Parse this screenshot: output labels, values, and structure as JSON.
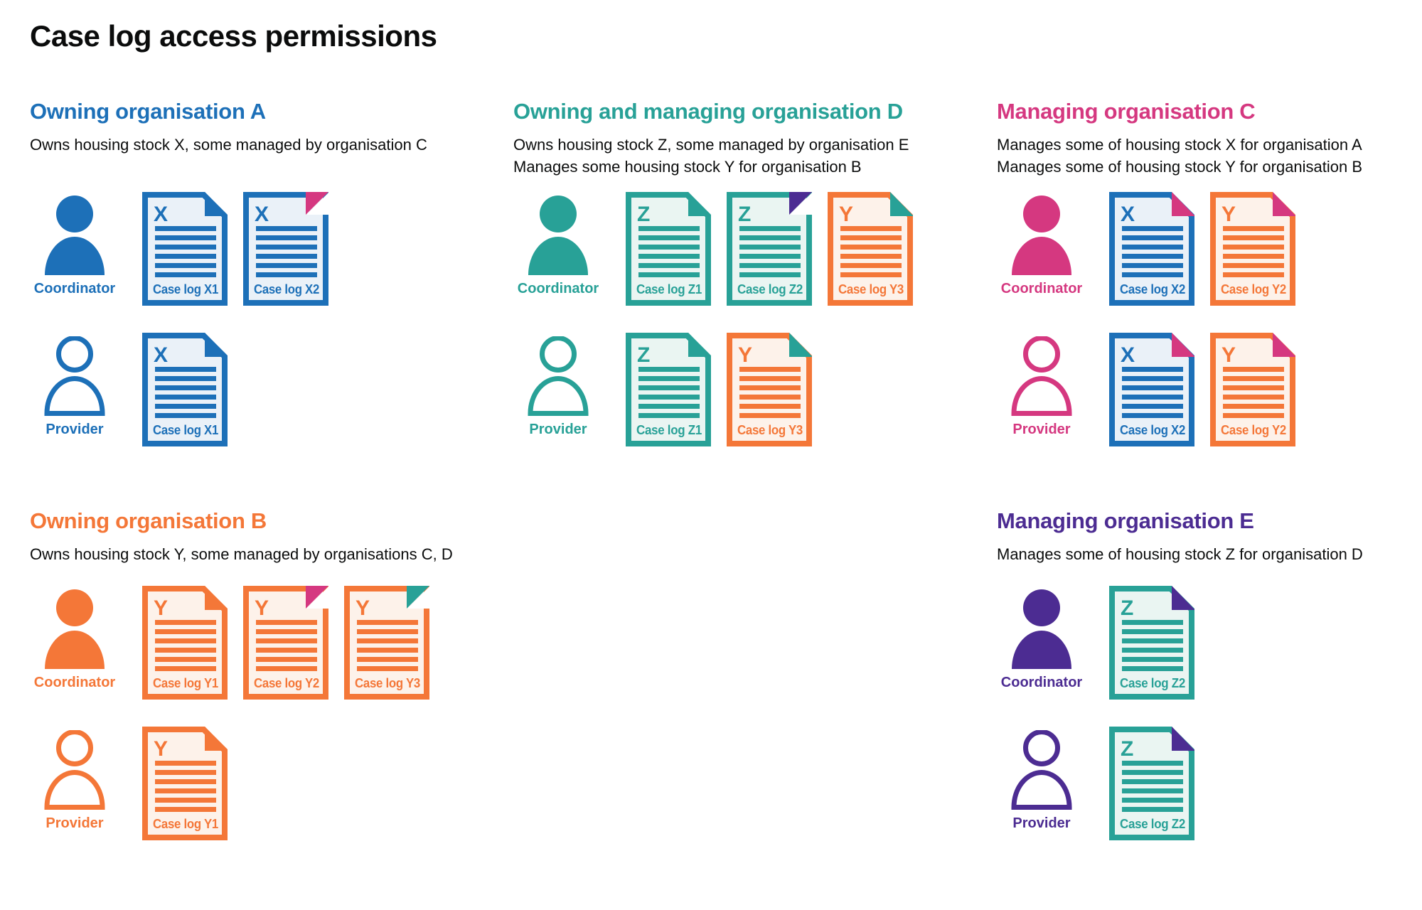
{
  "title": "Case log access permissions",
  "palette": {
    "blue": "#1d70b8",
    "teal": "#28a197",
    "orange": "#f47738",
    "pink": "#d53880",
    "purple": "#4c2c92",
    "text": "#0b0c0c",
    "doc_tint": {
      "blue": "#eaf1f8",
      "teal": "#eaf5f2",
      "orange": "#fdf2ea"
    }
  },
  "organisations": [
    {
      "id": "A",
      "heading": "Owning organisation A",
      "color": "blue",
      "subtitle_lines": [
        "Owns housing stock X, some managed by organisation C"
      ],
      "rows": [
        {
          "role": "Coordinator",
          "person_style": "filled",
          "docs": [
            {
              "label": "Case log X1",
              "letter": "X",
              "doc_color": "blue",
              "fold_color": "blue",
              "fold_style": "dogear"
            },
            {
              "label": "Case log X2",
              "letter": "X",
              "doc_color": "blue",
              "fold_color": "pink",
              "fold_style": "corner"
            }
          ]
        },
        {
          "role": "Provider",
          "person_style": "outline",
          "docs": [
            {
              "label": "Case log X1",
              "letter": "X",
              "doc_color": "blue",
              "fold_color": "blue",
              "fold_style": "dogear"
            }
          ]
        }
      ]
    },
    {
      "id": "D",
      "heading": "Owning and managing organisation D",
      "color": "teal",
      "subtitle_lines": [
        "Owns housing stock Z, some managed by organisation E",
        "Manages some housing stock Y for organisation B"
      ],
      "rows": [
        {
          "role": "Coordinator",
          "person_style": "filled",
          "docs": [
            {
              "label": "Case log Z1",
              "letter": "Z",
              "doc_color": "teal",
              "fold_color": "teal",
              "fold_style": "dogear"
            },
            {
              "label": "Case log Z2",
              "letter": "Z",
              "doc_color": "teal",
              "fold_color": "purple",
              "fold_style": "corner"
            },
            {
              "label": "Case log Y3",
              "letter": "Y",
              "doc_color": "orange",
              "fold_color": "teal",
              "fold_style": "dogear"
            }
          ]
        },
        {
          "role": "Provider",
          "person_style": "outline",
          "docs": [
            {
              "label": "Case log Z1",
              "letter": "Z",
              "doc_color": "teal",
              "fold_color": "teal",
              "fold_style": "dogear"
            },
            {
              "label": "Case log Y3",
              "letter": "Y",
              "doc_color": "orange",
              "fold_color": "teal",
              "fold_style": "dogear"
            }
          ]
        }
      ]
    },
    {
      "id": "C",
      "heading": "Managing organisation C",
      "color": "pink",
      "subtitle_lines": [
        "Manages some of housing stock X for organisation A",
        "Manages some of housing stock Y for organisation B"
      ],
      "rows": [
        {
          "role": "Coordinator",
          "person_style": "filled",
          "docs": [
            {
              "label": "Case log X2",
              "letter": "X",
              "doc_color": "blue",
              "fold_color": "pink",
              "fold_style": "dogear"
            },
            {
              "label": "Case log Y2",
              "letter": "Y",
              "doc_color": "orange",
              "fold_color": "pink",
              "fold_style": "dogear"
            }
          ]
        },
        {
          "role": "Provider",
          "person_style": "outline",
          "docs": [
            {
              "label": "Case log X2",
              "letter": "X",
              "doc_color": "blue",
              "fold_color": "pink",
              "fold_style": "dogear"
            },
            {
              "label": "Case log Y2",
              "letter": "Y",
              "doc_color": "orange",
              "fold_color": "pink",
              "fold_style": "dogear"
            }
          ]
        }
      ]
    },
    {
      "id": "B",
      "heading": "Owning organisation B",
      "color": "orange",
      "subtitle_lines": [
        "Owns housing stock Y, some managed by organisations C, D"
      ],
      "rows": [
        {
          "role": "Coordinator",
          "person_style": "filled",
          "docs": [
            {
              "label": "Case log Y1",
              "letter": "Y",
              "doc_color": "orange",
              "fold_color": "orange",
              "fold_style": "dogear"
            },
            {
              "label": "Case log Y2",
              "letter": "Y",
              "doc_color": "orange",
              "fold_color": "pink",
              "fold_style": "corner"
            },
            {
              "label": "Case log Y3",
              "letter": "Y",
              "doc_color": "orange",
              "fold_color": "teal",
              "fold_style": "corner"
            }
          ]
        },
        {
          "role": "Provider",
          "person_style": "outline",
          "docs": [
            {
              "label": "Case log Y1",
              "letter": "Y",
              "doc_color": "orange",
              "fold_color": "orange",
              "fold_style": "dogear"
            }
          ]
        }
      ]
    },
    {
      "id": "E",
      "heading": "Managing organisation E",
      "color": "purple",
      "subtitle_lines": [
        "Manages some of housing stock Z for organisation D"
      ],
      "rows": [
        {
          "role": "Coordinator",
          "person_style": "filled",
          "docs": [
            {
              "label": "Case log Z2",
              "letter": "Z",
              "doc_color": "teal",
              "fold_color": "purple",
              "fold_style": "dogear"
            }
          ]
        },
        {
          "role": "Provider",
          "person_style": "outline",
          "docs": [
            {
              "label": "Case log Z2",
              "letter": "Z",
              "doc_color": "teal",
              "fold_color": "purple",
              "fold_style": "dogear"
            }
          ]
        }
      ]
    }
  ]
}
